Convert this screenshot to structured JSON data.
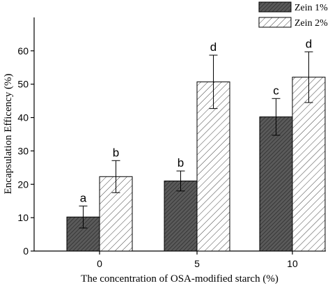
{
  "chart_data": {
    "type": "bar",
    "title": "",
    "xlabel": "The concentration of OSA-modified starch (%)",
    "ylabel": "Encapsulation Efficency (%)",
    "categories": [
      "0",
      "5",
      "10"
    ],
    "ylim": [
      0,
      70
    ],
    "yticks": [
      0,
      10,
      20,
      30,
      40,
      50,
      60
    ],
    "grid": false,
    "legend_position": "top-right",
    "series": [
      {
        "name": "Zein 1%",
        "fill": "#595959",
        "pattern": "dense-hatch",
        "values": [
          10.2,
          21.0,
          40.2
        ],
        "errors": [
          3.3,
          3.0,
          5.5
        ],
        "letters": [
          "a",
          "b",
          "c"
        ]
      },
      {
        "name": "Zein 2%",
        "fill": "#ffffff",
        "pattern": "sparse-hatch",
        "values": [
          22.3,
          50.7,
          52.1
        ],
        "errors": [
          4.8,
          8.0,
          7.6
        ],
        "letters": [
          "b",
          "d",
          "d"
        ]
      }
    ]
  }
}
